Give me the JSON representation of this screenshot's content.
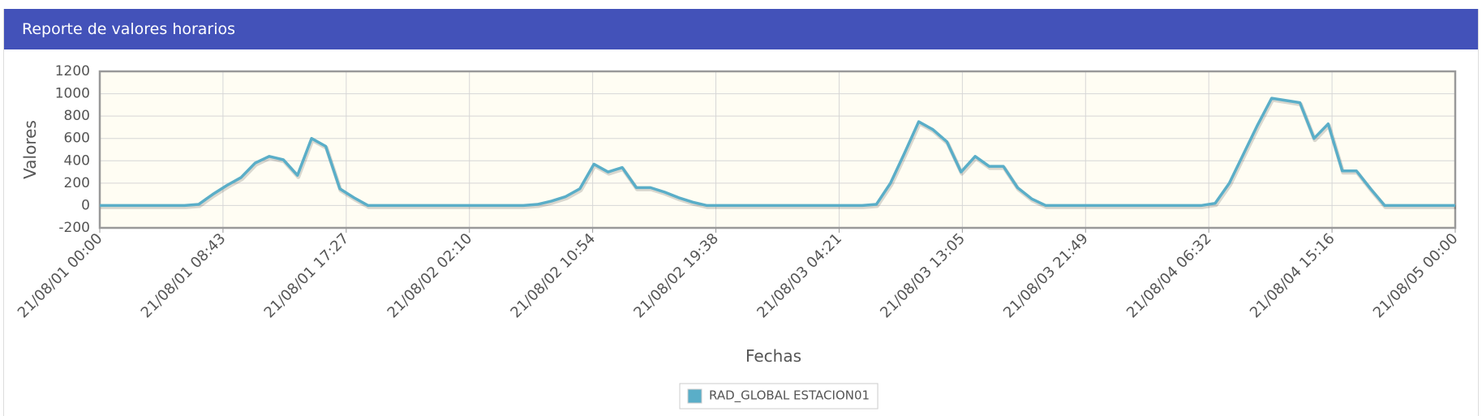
{
  "header": {
    "title": "Reporte de valores horarios"
  },
  "chart_data": {
    "type": "line",
    "xlabel": "Fechas",
    "ylabel": "Valores",
    "x": [
      0,
      1,
      2,
      3,
      4,
      5,
      6,
      7,
      8,
      9,
      10,
      11,
      12,
      13,
      14,
      15,
      16,
      17,
      18,
      19,
      20,
      21,
      22,
      23,
      24,
      25,
      26,
      27,
      28,
      29,
      30,
      31,
      32,
      33,
      34,
      35,
      36,
      37,
      38,
      39,
      40,
      41,
      42,
      43,
      44,
      45,
      46,
      47,
      48,
      49,
      50,
      51,
      52,
      53,
      54,
      55,
      56,
      57,
      58,
      59,
      60,
      61,
      62,
      63,
      64,
      65,
      66,
      67,
      68,
      69,
      70,
      71,
      72,
      73,
      74,
      75,
      76,
      77,
      78,
      79,
      80,
      81,
      82,
      83,
      84,
      85,
      86,
      87,
      88,
      89,
      90,
      91,
      92,
      93,
      94,
      95,
      96
    ],
    "series": [
      {
        "name": "RAD_GLOBAL ESTACION01",
        "color": "#5aaec8",
        "values": [
          0,
          0,
          0,
          0,
          0,
          0,
          0,
          10,
          100,
          180,
          250,
          380,
          440,
          410,
          270,
          600,
          530,
          150,
          70,
          0,
          0,
          0,
          0,
          0,
          0,
          0,
          0,
          0,
          0,
          0,
          0,
          10,
          40,
          80,
          150,
          370,
          300,
          340,
          160,
          160,
          120,
          70,
          30,
          0,
          0,
          0,
          0,
          0,
          0,
          0,
          0,
          0,
          0,
          0,
          0,
          10,
          200,
          470,
          750,
          680,
          570,
          300,
          440,
          350,
          350,
          160,
          60,
          0,
          0,
          0,
          0,
          0,
          0,
          0,
          0,
          0,
          0,
          0,
          0,
          20,
          200,
          460,
          720,
          960,
          940,
          920,
          600,
          730,
          310,
          310,
          150,
          0,
          0,
          0,
          0,
          0,
          0
        ]
      }
    ],
    "xlim": [
      0,
      96
    ],
    "xticks": [
      {
        "value": 0,
        "label": "21/08/01 00:00"
      },
      {
        "value": 8.727,
        "label": "21/08/01 08:43"
      },
      {
        "value": 17.455,
        "label": "21/08/01 17:27"
      },
      {
        "value": 26.182,
        "label": "21/08/02 02:10"
      },
      {
        "value": 34.909,
        "label": "21/08/02 10:54"
      },
      {
        "value": 43.636,
        "label": "21/08/02 19:38"
      },
      {
        "value": 52.364,
        "label": "21/08/03 04:21"
      },
      {
        "value": 61.091,
        "label": "21/08/03 13:05"
      },
      {
        "value": 69.818,
        "label": "21/08/03 21:49"
      },
      {
        "value": 78.545,
        "label": "21/08/04 06:32"
      },
      {
        "value": 87.273,
        "label": "21/08/04 15:16"
      },
      {
        "value": 96,
        "label": "21/08/05 00:00"
      }
    ],
    "ylim": [
      -200,
      1200
    ],
    "yticks": [
      -200,
      0,
      200,
      400,
      600,
      800,
      1000,
      1200
    ],
    "grid": true
  }
}
